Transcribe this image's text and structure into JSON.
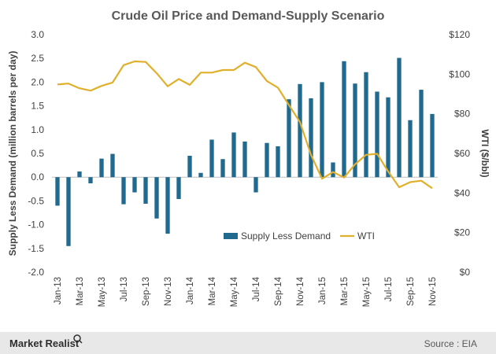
{
  "chart_data": {
    "type": "bar",
    "title": "Crude Oil Price and Demand-Supply Scenario",
    "ylabel": "Supply Less Demand (million barrels per day)",
    "y2label": "WTI ($/bbl)",
    "ylim": [
      -2.0,
      3.0
    ],
    "y2lim": [
      0,
      120
    ],
    "y_ticks": [
      "3.0",
      "2.5",
      "2.0",
      "1.5",
      "1.0",
      "0.5",
      "0.0",
      "-0.5",
      "-1.0",
      "-1.5",
      "-2.0"
    ],
    "y2_ticks": [
      "$120",
      "$100",
      "$80",
      "$60",
      "$40",
      "$20",
      "$0"
    ],
    "x_tick_labels": [
      "Jan-13",
      "Mar-13",
      "May-13",
      "Jul-13",
      "Sep-13",
      "Nov-13",
      "Jan-14",
      "Mar-14",
      "May-14",
      "Jul-14",
      "Sep-14",
      "Nov-14",
      "Jan-15",
      "Mar-15",
      "May-15",
      "Jul-15",
      "Sep-15",
      "Nov-15"
    ],
    "categories": [
      "Jan-13",
      "Feb-13",
      "Mar-13",
      "Apr-13",
      "May-13",
      "Jun-13",
      "Jul-13",
      "Aug-13",
      "Sep-13",
      "Oct-13",
      "Nov-13",
      "Dec-13",
      "Jan-14",
      "Feb-14",
      "Mar-14",
      "Apr-14",
      "May-14",
      "Jun-14",
      "Jul-14",
      "Aug-14",
      "Sep-14",
      "Oct-14",
      "Nov-14",
      "Dec-14",
      "Jan-15",
      "Feb-15",
      "Mar-15",
      "Apr-15",
      "May-15",
      "Jun-15",
      "Jul-15",
      "Aug-15",
      "Sep-15",
      "Oct-15",
      "Nov-15"
    ],
    "series": [
      {
        "name": "Supply Less Demand",
        "type": "bar",
        "axis": "left",
        "color": "#1F6A8E",
        "values": [
          -0.6,
          -1.45,
          0.12,
          -0.13,
          0.39,
          0.49,
          -0.57,
          -0.32,
          -0.56,
          -0.87,
          -1.19,
          -0.46,
          0.45,
          0.09,
          0.79,
          0.38,
          0.94,
          0.75,
          -0.32,
          0.72,
          0.65,
          1.64,
          1.96,
          1.66,
          2.0,
          0.31,
          2.44,
          1.97,
          2.21,
          1.8,
          1.68,
          2.51,
          1.2,
          1.84,
          1.33
        ]
      },
      {
        "name": "WTI",
        "type": "line",
        "axis": "right",
        "color": "#E0B02C",
        "values": [
          94.8,
          95.3,
          92.9,
          91.7,
          94.1,
          95.8,
          104.6,
          106.5,
          106.2,
          100.5,
          93.9,
          97.6,
          94.6,
          100.8,
          100.8,
          102.1,
          102.1,
          105.8,
          103.6,
          96.5,
          93.2,
          84.4,
          75.8,
          59.3,
          47.2,
          50.6,
          47.8,
          54.5,
          59.3,
          59.8,
          50.9,
          42.9,
          45.5,
          46.2,
          42.4
        ]
      }
    ],
    "legend": {
      "position": "bottom-right",
      "entries": [
        "Supply Less Demand",
        "WTI"
      ]
    },
    "grid": false
  },
  "footer": {
    "brand": "Market Realist",
    "source": "Source : EIA"
  },
  "colors": {
    "bar": "#1F6A8E",
    "line": "#E0B02C",
    "title": "#595959",
    "text": "#404040",
    "footer_bg": "#E8E8E8"
  }
}
